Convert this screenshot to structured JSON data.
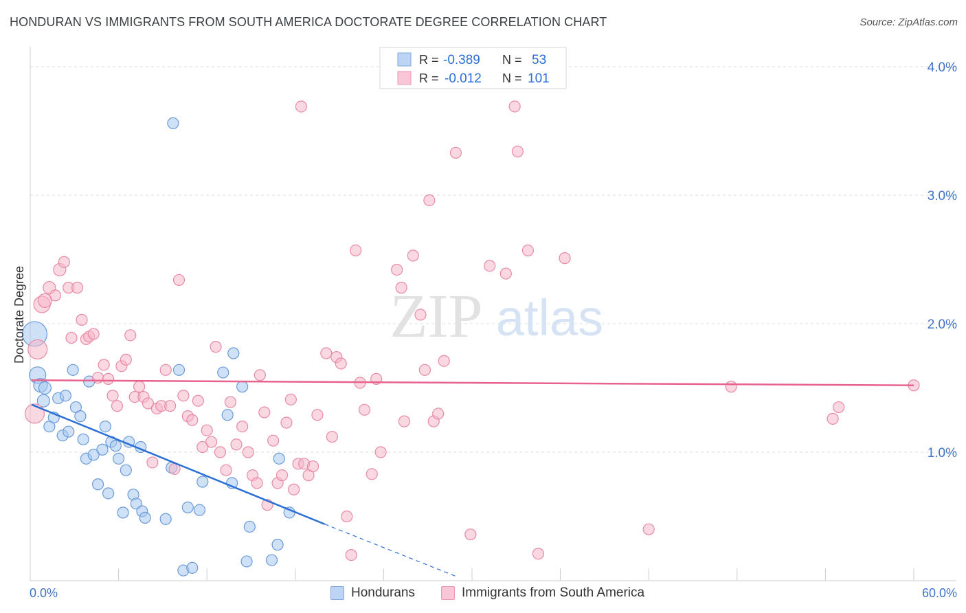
{
  "header": {
    "title": "HONDURAN VS IMMIGRANTS FROM SOUTH AMERICA DOCTORATE DEGREE CORRELATION CHART",
    "source": "Source: ZipAtlas.com"
  },
  "watermark": {
    "zip": "ZIP",
    "atlas": "atlas"
  },
  "colors": {
    "blue_fill": "#a8c8f0",
    "blue_stroke": "#6a9ad8",
    "blue_line": "#2b6fd6",
    "pink_fill": "#f5b8cb",
    "pink_stroke": "#e88aa6",
    "pink_line": "#e8628e",
    "tick_label": "#3f74c9",
    "grid": "#dddddd"
  },
  "chart_data": {
    "type": "scatter",
    "xlabel": "",
    "ylabel": "Doctorate Degree",
    "xlim": [
      0,
      60
    ],
    "ylim": [
      0,
      4.0
    ],
    "x_tick_labels": {
      "min": "0.0%",
      "max": "60.0%"
    },
    "y_ticks": [
      1.0,
      2.0,
      3.0,
      4.0
    ],
    "y_tick_labels": [
      "1.0%",
      "2.0%",
      "3.0%",
      "4.0%"
    ],
    "grid": true,
    "legend_placement": "top-center",
    "stats_legend": [
      {
        "r_label": "R =",
        "r_value": "-0.389",
        "n_label": "N =",
        "n_value": "53"
      },
      {
        "r_label": "R =",
        "r_value": "-0.012",
        "n_label": "N =",
        "n_value": "101"
      }
    ],
    "series": [
      {
        "name": "Hondurans",
        "color": "#a8c8f0",
        "trend": {
          "x1": 0.1,
          "y1": 1.37,
          "x2": 20.0,
          "y2": 0.44,
          "dashed_to_x": 29.0,
          "dashed_to_y": 0.03
        },
        "points": [
          [
            0.3,
            1.92,
            18
          ],
          [
            0.5,
            1.6,
            12
          ],
          [
            0.7,
            1.52,
            10
          ],
          [
            1.0,
            1.5,
            9
          ],
          [
            0.9,
            1.4,
            9
          ],
          [
            1.3,
            1.2,
            8
          ],
          [
            1.6,
            1.27,
            8
          ],
          [
            1.9,
            1.42,
            8
          ],
          [
            2.2,
            1.13,
            8
          ],
          [
            2.4,
            1.44,
            8
          ],
          [
            2.6,
            1.16,
            8
          ],
          [
            2.9,
            1.64,
            8
          ],
          [
            3.1,
            1.35,
            8
          ],
          [
            3.4,
            1.28,
            8
          ],
          [
            3.6,
            1.1,
            8
          ],
          [
            3.8,
            0.95,
            8
          ],
          [
            4.0,
            1.55,
            8
          ],
          [
            4.3,
            0.98,
            8
          ],
          [
            4.6,
            0.75,
            8
          ],
          [
            4.9,
            1.02,
            8
          ],
          [
            5.1,
            1.2,
            8
          ],
          [
            5.3,
            0.68,
            8
          ],
          [
            5.5,
            1.08,
            8
          ],
          [
            5.8,
            1.05,
            8
          ],
          [
            6.0,
            0.95,
            8
          ],
          [
            6.3,
            0.53,
            8
          ],
          [
            6.5,
            0.86,
            8
          ],
          [
            6.7,
            1.08,
            8
          ],
          [
            7.0,
            0.67,
            8
          ],
          [
            7.2,
            0.6,
            8
          ],
          [
            7.5,
            1.04,
            8
          ],
          [
            7.6,
            0.54,
            8
          ],
          [
            7.8,
            0.49,
            8
          ],
          [
            9.2,
            0.48,
            8
          ],
          [
            9.6,
            0.88,
            8
          ],
          [
            9.7,
            3.56,
            8
          ],
          [
            10.1,
            1.64,
            8
          ],
          [
            10.4,
            0.08,
            8
          ],
          [
            10.7,
            0.57,
            8
          ],
          [
            11.0,
            0.1,
            8
          ],
          [
            11.5,
            0.55,
            8
          ],
          [
            11.7,
            0.77,
            8
          ],
          [
            13.1,
            1.62,
            8
          ],
          [
            13.4,
            1.29,
            8
          ],
          [
            13.7,
            0.76,
            8
          ],
          [
            13.8,
            1.77,
            8
          ],
          [
            14.4,
            1.51,
            8
          ],
          [
            14.7,
            0.15,
            8
          ],
          [
            14.9,
            0.42,
            8
          ],
          [
            16.4,
            0.16,
            8
          ],
          [
            16.8,
            0.28,
            8
          ],
          [
            16.9,
            0.95,
            8
          ],
          [
            17.6,
            0.53,
            8
          ]
        ]
      },
      {
        "name": "Immigrants from South America",
        "color": "#f5b8cb",
        "trend": {
          "x1": 0.1,
          "y1": 1.56,
          "x2": 60.0,
          "y2": 1.52
        },
        "points": [
          [
            0.3,
            1.3,
            14
          ],
          [
            0.5,
            1.8,
            14
          ],
          [
            0.8,
            2.15,
            12
          ],
          [
            1.0,
            2.18,
            10
          ],
          [
            1.3,
            2.28,
            9
          ],
          [
            1.7,
            2.22,
            8
          ],
          [
            2.0,
            2.42,
            9
          ],
          [
            2.3,
            2.48,
            8
          ],
          [
            2.6,
            2.28,
            8
          ],
          [
            2.8,
            1.89,
            8
          ],
          [
            3.2,
            2.28,
            8
          ],
          [
            3.5,
            2.03,
            8
          ],
          [
            3.8,
            1.88,
            8
          ],
          [
            4.0,
            1.9,
            8
          ],
          [
            4.3,
            1.92,
            8
          ],
          [
            4.6,
            1.58,
            8
          ],
          [
            5.0,
            1.68,
            8
          ],
          [
            5.3,
            1.57,
            8
          ],
          [
            5.6,
            1.44,
            8
          ],
          [
            5.9,
            1.36,
            8
          ],
          [
            6.2,
            1.67,
            8
          ],
          [
            6.5,
            1.72,
            8
          ],
          [
            6.8,
            1.91,
            8
          ],
          [
            7.1,
            1.43,
            8
          ],
          [
            7.4,
            1.51,
            8
          ],
          [
            7.7,
            1.43,
            8
          ],
          [
            8.0,
            1.38,
            8
          ],
          [
            8.3,
            0.92,
            8
          ],
          [
            8.6,
            1.34,
            8
          ],
          [
            8.9,
            1.36,
            8
          ],
          [
            9.2,
            1.64,
            8
          ],
          [
            9.5,
            1.36,
            8
          ],
          [
            9.8,
            0.87,
            8
          ],
          [
            10.1,
            2.34,
            8
          ],
          [
            10.4,
            1.44,
            8
          ],
          [
            10.7,
            1.28,
            8
          ],
          [
            11.0,
            1.25,
            8
          ],
          [
            11.4,
            1.4,
            8
          ],
          [
            11.7,
            1.04,
            8
          ],
          [
            12.0,
            1.17,
            8
          ],
          [
            12.3,
            1.08,
            8
          ],
          [
            12.6,
            1.82,
            8
          ],
          [
            12.9,
            1.0,
            8
          ],
          [
            13.3,
            0.86,
            8
          ],
          [
            13.6,
            1.39,
            8
          ],
          [
            14.0,
            1.06,
            8
          ],
          [
            14.4,
            1.2,
            8
          ],
          [
            14.8,
            1.0,
            8
          ],
          [
            15.1,
            0.82,
            8
          ],
          [
            15.4,
            0.76,
            8
          ],
          [
            15.6,
            1.6,
            8
          ],
          [
            15.9,
            1.31,
            8
          ],
          [
            16.1,
            0.59,
            8
          ],
          [
            16.5,
            1.09,
            8
          ],
          [
            16.8,
            0.76,
            8
          ],
          [
            17.1,
            0.82,
            8
          ],
          [
            17.4,
            1.23,
            8
          ],
          [
            17.7,
            1.41,
            8
          ],
          [
            17.9,
            0.71,
            8
          ],
          [
            18.2,
            0.91,
            8
          ],
          [
            18.4,
            3.69,
            8
          ],
          [
            18.6,
            0.91,
            8
          ],
          [
            18.9,
            0.82,
            8
          ],
          [
            19.2,
            0.89,
            8
          ],
          [
            19.5,
            1.29,
            8
          ],
          [
            20.1,
            1.77,
            8
          ],
          [
            20.5,
            1.12,
            8
          ],
          [
            20.8,
            1.74,
            8
          ],
          [
            21.1,
            1.69,
            8
          ],
          [
            21.5,
            0.5,
            8
          ],
          [
            21.8,
            0.2,
            8
          ],
          [
            22.1,
            2.57,
            8
          ],
          [
            22.4,
            1.54,
            8
          ],
          [
            22.7,
            1.33,
            8
          ],
          [
            23.2,
            0.83,
            8
          ],
          [
            23.5,
            1.57,
            8
          ],
          [
            23.8,
            1.0,
            8
          ],
          [
            24.9,
            2.42,
            8
          ],
          [
            25.2,
            2.28,
            8
          ],
          [
            25.4,
            1.24,
            8
          ],
          [
            26.0,
            2.53,
            8
          ],
          [
            26.5,
            2.07,
            8
          ],
          [
            26.8,
            1.64,
            8
          ],
          [
            27.1,
            2.96,
            8
          ],
          [
            27.4,
            1.24,
            8
          ],
          [
            27.7,
            1.3,
            8
          ],
          [
            28.1,
            1.71,
            8
          ],
          [
            28.9,
            3.33,
            8
          ],
          [
            29.9,
            0.36,
            8
          ],
          [
            31.2,
            2.45,
            8
          ],
          [
            32.3,
            2.39,
            8
          ],
          [
            32.9,
            3.69,
            8
          ],
          [
            33.1,
            3.34,
            8
          ],
          [
            33.8,
            2.57,
            8
          ],
          [
            34.5,
            0.21,
            8
          ],
          [
            36.3,
            2.51,
            8
          ],
          [
            42.0,
            0.4,
            8
          ],
          [
            47.6,
            1.51,
            8
          ],
          [
            54.5,
            1.26,
            8
          ],
          [
            54.9,
            1.35,
            8
          ],
          [
            60.0,
            1.52,
            8
          ]
        ]
      }
    ]
  }
}
